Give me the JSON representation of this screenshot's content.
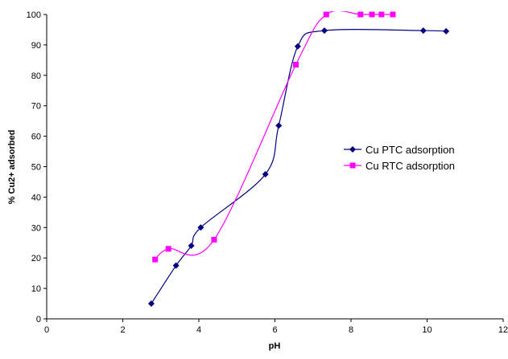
{
  "chart_data": {
    "type": "line",
    "smooth": true,
    "x_label": "pH",
    "y_label": "% Cu2+ adsorbed",
    "xlim": [
      0,
      12
    ],
    "xticks": [
      0,
      2,
      4,
      6,
      8,
      10,
      12
    ],
    "ylim": [
      0,
      100
    ],
    "yticks": [
      0,
      10,
      20,
      30,
      40,
      50,
      60,
      70,
      80,
      90,
      100
    ],
    "legend": "right",
    "series": [
      {
        "name": "Cu PTC adsorption",
        "color": "#000080",
        "marker": "diamond",
        "x": [
          2.75,
          3.4,
          3.8,
          4.05,
          5.75,
          6.1,
          6.6,
          7.3,
          9.9,
          10.5
        ],
        "values": [
          5,
          17.5,
          24,
          30,
          47.5,
          63.5,
          89.5,
          94.7,
          94.7,
          94.5
        ]
      },
      {
        "name": "Cu RTC adsorption",
        "color": "#ff00ff",
        "marker": "square",
        "x": [
          2.85,
          3.2,
          4.4,
          6.55,
          7.35,
          8.25,
          8.55,
          8.8,
          9.1
        ],
        "values": [
          19.5,
          23,
          26,
          83.5,
          100,
          100,
          100,
          100,
          100
        ]
      }
    ]
  }
}
